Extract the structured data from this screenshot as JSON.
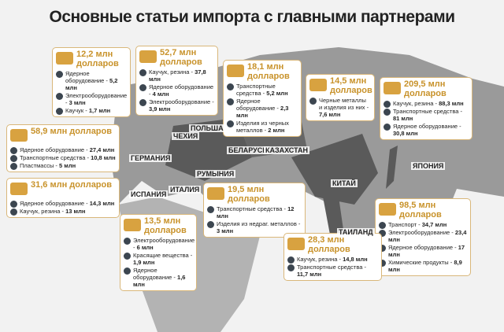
{
  "title": "Основные статьи импорта с главными партнерами",
  "countries": [
    "ЧЕХИЯ",
    "ПОЛЬША",
    "БЕЛАРУСЬ",
    "КАЗАХСТАН",
    "ГЕРМАНИЯ",
    "РУМЫНИЯ",
    "ИСПАНИЯ",
    "ИТАЛИЯ",
    "КИТАЙ",
    "ЯПОНИЯ",
    "ТАИЛАНД"
  ],
  "callouts": [
    {
      "amount": "12,2 млн долларов",
      "items": [
        {
          "label": "Ядерное оборудование -",
          "amount": "5,2 млн"
        },
        {
          "label": "Электрооборудование -",
          "amount": "3 млн"
        },
        {
          "label": "Каучук -",
          "amount": "1,7 млн"
        }
      ]
    },
    {
      "amount": "52,7 млн долларов",
      "items": [
        {
          "label": "Каучук, резина -",
          "amount": "37,8 млн"
        },
        {
          "label": "Ядерное оборудование -",
          "amount": "4 млн"
        },
        {
          "label": "Электрооборудование -",
          "amount": "3,9 млн"
        }
      ]
    },
    {
      "amount": "18,1 млн долларов",
      "items": [
        {
          "label": "Транспортные средства -",
          "amount": "5,2 млн"
        },
        {
          "label": "Ядерное оборудование -",
          "amount": "2,3 млн"
        },
        {
          "label": "Изделия из черных металлов -",
          "amount": "2 млн"
        }
      ]
    },
    {
      "amount": "14,5 млн долларов",
      "items": [
        {
          "label": "Черные металлы и изделия из них -",
          "amount": "7,6 млн"
        }
      ]
    },
    {
      "amount": "209,5 млн долларов",
      "items": [
        {
          "label": "Каучук, резина -",
          "amount": "88,3 млн"
        },
        {
          "label": "Транспортные средства -",
          "amount": "81 млн"
        },
        {
          "label": "Ядерное оборудование -",
          "amount": "30,8 млн"
        }
      ]
    },
    {
      "amount": "58,9 млн долларов",
      "items": [
        {
          "label": "Ядерное оборудование -",
          "amount": "27,4 млн"
        },
        {
          "label": "Транспортные средства -",
          "amount": "10,8 млн"
        },
        {
          "label": "Пластмассы -",
          "amount": "5 млн"
        }
      ]
    },
    {
      "amount": "31,6 млн долларов",
      "items": [
        {
          "label": "Ядерное оборудование -",
          "amount": "14,3 млн"
        },
        {
          "label": "Каучук, резина -",
          "amount": "13 млн"
        }
      ]
    },
    {
      "amount": "19,5 млн долларов",
      "items": [
        {
          "label": "Транспортные средства -",
          "amount": "12 млн"
        },
        {
          "label": "Изделия из недраг. металлов -",
          "amount": "3 млн"
        }
      ]
    },
    {
      "amount": "13,5 млн долларов",
      "items": [
        {
          "label": "Электрооборудование -",
          "amount": "6 млн"
        },
        {
          "label": "Красящие вещества -",
          "amount": "1,9 млн"
        },
        {
          "label": "Ядерное оборудование -",
          "amount": "1,6 млн"
        }
      ]
    },
    {
      "amount": "98,5 млн долларов",
      "items": [
        {
          "label": "Транспорт -",
          "amount": "34,7 млн"
        },
        {
          "label": "Электрооборудование -",
          "amount": "23,4 млн"
        },
        {
          "label": "Ядерное оборудование -",
          "amount": "17 млн"
        },
        {
          "label": "Химические продукты -",
          "amount": "8,9 млн"
        }
      ]
    },
    {
      "amount": "28,3 млн долларов",
      "items": [
        {
          "label": "Каучук, резина -",
          "amount": "14,8 млн"
        },
        {
          "label": "Транспортные средства -",
          "amount": "11,7 млн"
        }
      ]
    }
  ]
}
